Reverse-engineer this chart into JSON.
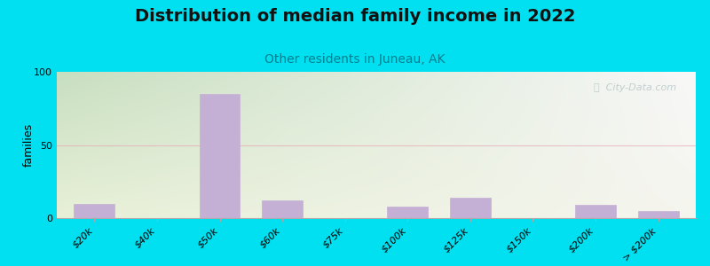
{
  "title": "Distribution of median family income in 2022",
  "subtitle": "Other residents in Juneau, AK",
  "ylabel": "families",
  "categories": [
    "$20k",
    "$40k",
    "$50k",
    "$60k",
    "$75k",
    "$100k",
    "$125k",
    "$150k",
    "$200k",
    "> $200k"
  ],
  "values": [
    10,
    0,
    85,
    12,
    0,
    8,
    14,
    0,
    9,
    5
  ],
  "bar_color": "#c5b0d5",
  "ylim": [
    0,
    100
  ],
  "yticks": [
    0,
    50,
    100
  ],
  "bg_outer": "#00e0f0",
  "grad_top_left": "#c8dfc0",
  "grad_top_right": "#f8f8f8",
  "grad_bottom_left": "#e8f0d8",
  "grad_bottom_right": "#f5f5ee",
  "grid_color": "#e8a0b0",
  "grid_alpha": 0.6,
  "title_fontsize": 14,
  "subtitle_fontsize": 10,
  "subtitle_color": "#008090",
  "watermark_text": "ⓘ  City-Data.com",
  "watermark_color": "#b8c8c8",
  "bar_width": 0.65
}
